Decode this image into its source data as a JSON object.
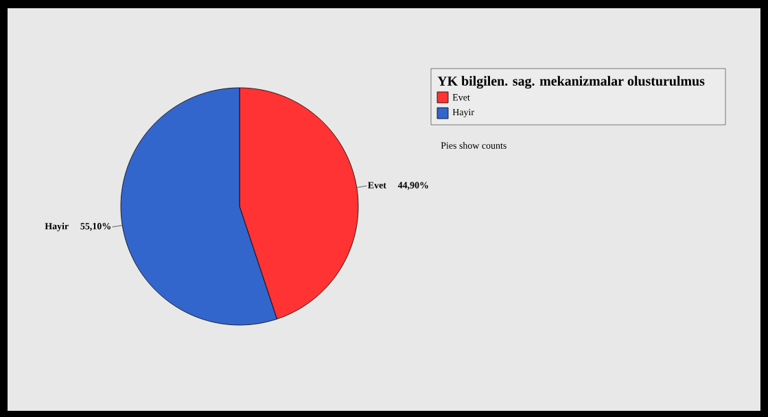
{
  "chart_data": {
    "type": "pie",
    "legend_title": "YK bilgilen. sag. mekanizmalar olusturulmus",
    "categories": [
      "Evet",
      "Hayir"
    ],
    "values": [
      44.9,
      55.1
    ],
    "value_labels": [
      "44,90%",
      "55,10%"
    ],
    "colors": [
      "#ff3333",
      "#3366cc"
    ],
    "legend": "top right",
    "annotations": [
      "Pies show counts"
    ]
  }
}
